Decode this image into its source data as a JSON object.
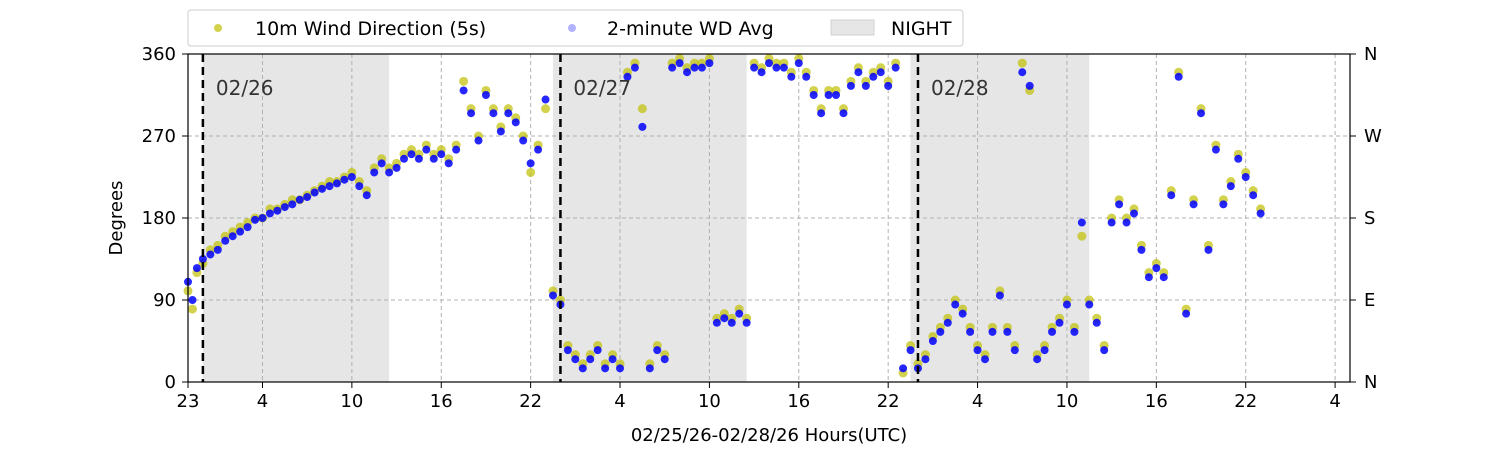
{
  "chart_data": {
    "type": "scatter",
    "xlabel": "02/25/26-02/28/26  Hours(UTC)",
    "ylabel": "Degrees",
    "x_range_hours": [
      23,
      101
    ],
    "ylim": [
      0,
      360
    ],
    "x_ticks": [
      {
        "hour": 23,
        "label": "23"
      },
      {
        "hour": 28,
        "label": "4"
      },
      {
        "hour": 34,
        "label": "10"
      },
      {
        "hour": 40,
        "label": "16"
      },
      {
        "hour": 46,
        "label": "22"
      },
      {
        "hour": 52,
        "label": "4"
      },
      {
        "hour": 58,
        "label": "10"
      },
      {
        "hour": 64,
        "label": "16"
      },
      {
        "hour": 70,
        "label": "22"
      },
      {
        "hour": 76,
        "label": "4"
      },
      {
        "hour": 82,
        "label": "10"
      },
      {
        "hour": 88,
        "label": "16"
      },
      {
        "hour": 94,
        "label": "22"
      },
      {
        "hour": 100,
        "label": "4"
      }
    ],
    "y_ticks": [
      0,
      90,
      180,
      270,
      360
    ],
    "y_right_labels": [
      {
        "value": 0,
        "label": "N"
      },
      {
        "value": 90,
        "label": "E"
      },
      {
        "value": 180,
        "label": "S"
      },
      {
        "value": 270,
        "label": "W"
      },
      {
        "value": 360,
        "label": "N"
      }
    ],
    "grid": true,
    "legend_position": "top, above plot",
    "legend": [
      {
        "label": "10m Wind Direction (5s)",
        "color": "#bfbf00",
        "marker": "circle"
      },
      {
        "label": "2-minute WD Avg",
        "color": "#0000ff",
        "marker": "circle"
      },
      {
        "label": "NIGHT",
        "color": "#e6e6e6",
        "marker": "rect"
      }
    ],
    "night_periods": [
      [
        24,
        36.5
      ],
      [
        47.5,
        60.5
      ],
      [
        71.5,
        83.5
      ]
    ],
    "day_markers": [
      {
        "hour": 24,
        "label": "02/26"
      },
      {
        "hour": 48,
        "label": "02/27"
      },
      {
        "hour": 72,
        "label": "02/28"
      }
    ],
    "series": [
      {
        "name": "10m Wind Direction (5s)",
        "color": "#bfbf00",
        "points": [
          [
            23.0,
            100
          ],
          [
            23.3,
            80
          ],
          [
            23.6,
            120
          ],
          [
            24.0,
            130
          ],
          [
            24.5,
            145
          ],
          [
            25.0,
            150
          ],
          [
            25.5,
            160
          ],
          [
            26.0,
            165
          ],
          [
            26.5,
            170
          ],
          [
            27.0,
            175
          ],
          [
            27.5,
            180
          ],
          [
            28.0,
            180
          ],
          [
            28.5,
            190
          ],
          [
            29.0,
            190
          ],
          [
            29.5,
            195
          ],
          [
            30.0,
            200
          ],
          [
            30.5,
            200
          ],
          [
            31.0,
            205
          ],
          [
            31.5,
            210
          ],
          [
            32.0,
            215
          ],
          [
            32.5,
            220
          ],
          [
            33.0,
            220
          ],
          [
            33.5,
            225
          ],
          [
            34.0,
            230
          ],
          [
            34.5,
            220
          ],
          [
            35.0,
            210
          ],
          [
            35.5,
            235
          ],
          [
            36.0,
            245
          ],
          [
            36.5,
            235
          ],
          [
            37.0,
            240
          ],
          [
            37.5,
            250
          ],
          [
            38.0,
            255
          ],
          [
            38.5,
            250
          ],
          [
            39.0,
            260
          ],
          [
            39.5,
            250
          ],
          [
            40.0,
            255
          ],
          [
            40.5,
            245
          ],
          [
            41.0,
            260
          ],
          [
            41.5,
            330
          ],
          [
            42.0,
            300
          ],
          [
            42.5,
            270
          ],
          [
            43.0,
            320
          ],
          [
            43.5,
            300
          ],
          [
            44.0,
            280
          ],
          [
            44.5,
            300
          ],
          [
            45.0,
            290
          ],
          [
            45.5,
            270
          ],
          [
            46.0,
            230
          ],
          [
            46.5,
            260
          ],
          [
            47.0,
            300
          ],
          [
            47.5,
            100
          ],
          [
            48.0,
            90
          ],
          [
            48.5,
            40
          ],
          [
            49.0,
            30
          ],
          [
            49.5,
            20
          ],
          [
            50.0,
            30
          ],
          [
            50.5,
            40
          ],
          [
            51.0,
            20
          ],
          [
            51.5,
            30
          ],
          [
            52.0,
            20
          ],
          [
            52.5,
            340
          ],
          [
            53.0,
            350
          ],
          [
            53.5,
            300
          ],
          [
            54.0,
            20
          ],
          [
            54.5,
            40
          ],
          [
            55.0,
            30
          ],
          [
            55.5,
            350
          ],
          [
            56.0,
            355
          ],
          [
            56.5,
            345
          ],
          [
            57.0,
            350
          ],
          [
            57.5,
            350
          ],
          [
            58.0,
            355
          ],
          [
            58.5,
            70
          ],
          [
            59.0,
            75
          ],
          [
            59.5,
            70
          ],
          [
            60.0,
            80
          ],
          [
            60.5,
            70
          ],
          [
            61.0,
            350
          ],
          [
            61.5,
            345
          ],
          [
            62.0,
            355
          ],
          [
            62.5,
            350
          ],
          [
            63.0,
            350
          ],
          [
            63.5,
            340
          ],
          [
            64.0,
            355
          ],
          [
            64.5,
            340
          ],
          [
            65.0,
            320
          ],
          [
            65.5,
            300
          ],
          [
            66.0,
            320
          ],
          [
            66.5,
            320
          ],
          [
            67.0,
            300
          ],
          [
            67.5,
            330
          ],
          [
            68.0,
            345
          ],
          [
            68.5,
            330
          ],
          [
            69.0,
            340
          ],
          [
            69.5,
            345
          ],
          [
            70.0,
            330
          ],
          [
            70.5,
            350
          ],
          [
            71.0,
            10
          ],
          [
            71.5,
            40
          ],
          [
            72.0,
            20
          ],
          [
            72.5,
            30
          ],
          [
            73.0,
            50
          ],
          [
            73.5,
            60
          ],
          [
            74.0,
            70
          ],
          [
            74.5,
            90
          ],
          [
            75.0,
            80
          ],
          [
            75.5,
            60
          ],
          [
            76.0,
            40
          ],
          [
            76.5,
            30
          ],
          [
            77.0,
            60
          ],
          [
            77.5,
            100
          ],
          [
            78.0,
            60
          ],
          [
            78.5,
            40
          ],
          [
            79.0,
            350
          ],
          [
            79.5,
            320
          ],
          [
            80.0,
            30
          ],
          [
            80.5,
            40
          ],
          [
            81.0,
            60
          ],
          [
            81.5,
            70
          ],
          [
            82.0,
            90
          ],
          [
            82.5,
            60
          ],
          [
            83.0,
            160
          ],
          [
            83.5,
            90
          ],
          [
            84.0,
            70
          ],
          [
            84.5,
            40
          ],
          [
            85.0,
            180
          ],
          [
            85.5,
            200
          ],
          [
            86.0,
            180
          ],
          [
            86.5,
            190
          ],
          [
            87.0,
            150
          ],
          [
            87.5,
            120
          ],
          [
            88.0,
            130
          ],
          [
            88.5,
            120
          ],
          [
            89.0,
            210
          ],
          [
            89.5,
            340
          ],
          [
            90.0,
            80
          ],
          [
            90.5,
            200
          ],
          [
            91.0,
            300
          ],
          [
            91.5,
            150
          ],
          [
            92.0,
            260
          ],
          [
            92.5,
            200
          ],
          [
            93.0,
            220
          ],
          [
            93.5,
            250
          ],
          [
            94.0,
            230
          ],
          [
            94.5,
            210
          ],
          [
            95.0,
            190
          ]
        ]
      },
      {
        "name": "2-minute WD Avg",
        "color": "#0000ff",
        "points": [
          [
            23.0,
            110
          ],
          [
            23.3,
            90
          ],
          [
            23.6,
            125
          ],
          [
            24.0,
            135
          ],
          [
            24.5,
            140
          ],
          [
            25.0,
            145
          ],
          [
            25.5,
            155
          ],
          [
            26.0,
            160
          ],
          [
            26.5,
            165
          ],
          [
            27.0,
            170
          ],
          [
            27.5,
            178
          ],
          [
            28.0,
            180
          ],
          [
            28.5,
            185
          ],
          [
            29.0,
            188
          ],
          [
            29.5,
            192
          ],
          [
            30.0,
            195
          ],
          [
            30.5,
            200
          ],
          [
            31.0,
            203
          ],
          [
            31.5,
            208
          ],
          [
            32.0,
            212
          ],
          [
            32.5,
            215
          ],
          [
            33.0,
            218
          ],
          [
            33.5,
            222
          ],
          [
            34.0,
            225
          ],
          [
            34.5,
            215
          ],
          [
            35.0,
            205
          ],
          [
            35.5,
            230
          ],
          [
            36.0,
            240
          ],
          [
            36.5,
            230
          ],
          [
            37.0,
            235
          ],
          [
            37.5,
            245
          ],
          [
            38.0,
            250
          ],
          [
            38.5,
            245
          ],
          [
            39.0,
            255
          ],
          [
            39.5,
            245
          ],
          [
            40.0,
            250
          ],
          [
            40.5,
            240
          ],
          [
            41.0,
            255
          ],
          [
            41.5,
            320
          ],
          [
            42.0,
            295
          ],
          [
            42.5,
            265
          ],
          [
            43.0,
            315
          ],
          [
            43.5,
            295
          ],
          [
            44.0,
            275
          ],
          [
            44.5,
            295
          ],
          [
            45.0,
            285
          ],
          [
            45.5,
            265
          ],
          [
            46.0,
            240
          ],
          [
            46.5,
            255
          ],
          [
            47.0,
            310
          ],
          [
            47.5,
            95
          ],
          [
            48.0,
            85
          ],
          [
            48.5,
            35
          ],
          [
            49.0,
            25
          ],
          [
            49.5,
            15
          ],
          [
            50.0,
            25
          ],
          [
            50.5,
            35
          ],
          [
            51.0,
            15
          ],
          [
            51.5,
            25
          ],
          [
            52.0,
            15
          ],
          [
            52.5,
            335
          ],
          [
            53.0,
            345
          ],
          [
            53.5,
            280
          ],
          [
            54.0,
            15
          ],
          [
            54.5,
            35
          ],
          [
            55.0,
            25
          ],
          [
            55.5,
            345
          ],
          [
            56.0,
            350
          ],
          [
            56.5,
            340
          ],
          [
            57.0,
            345
          ],
          [
            57.5,
            345
          ],
          [
            58.0,
            350
          ],
          [
            58.5,
            65
          ],
          [
            59.0,
            70
          ],
          [
            59.5,
            65
          ],
          [
            60.0,
            75
          ],
          [
            60.5,
            65
          ],
          [
            61.0,
            345
          ],
          [
            61.5,
            340
          ],
          [
            62.0,
            350
          ],
          [
            62.5,
            345
          ],
          [
            63.0,
            345
          ],
          [
            63.5,
            335
          ],
          [
            64.0,
            350
          ],
          [
            64.5,
            335
          ],
          [
            65.0,
            315
          ],
          [
            65.5,
            295
          ],
          [
            66.0,
            315
          ],
          [
            66.5,
            315
          ],
          [
            67.0,
            295
          ],
          [
            67.5,
            325
          ],
          [
            68.0,
            340
          ],
          [
            68.5,
            325
          ],
          [
            69.0,
            335
          ],
          [
            69.5,
            340
          ],
          [
            70.0,
            325
          ],
          [
            70.5,
            345
          ],
          [
            71.0,
            15
          ],
          [
            71.5,
            35
          ],
          [
            72.0,
            15
          ],
          [
            72.5,
            25
          ],
          [
            73.0,
            45
          ],
          [
            73.5,
            55
          ],
          [
            74.0,
            65
          ],
          [
            74.5,
            85
          ],
          [
            75.0,
            75
          ],
          [
            75.5,
            55
          ],
          [
            76.0,
            35
          ],
          [
            76.5,
            25
          ],
          [
            77.0,
            55
          ],
          [
            77.5,
            95
          ],
          [
            78.0,
            55
          ],
          [
            78.5,
            35
          ],
          [
            79.0,
            340
          ],
          [
            79.5,
            325
          ],
          [
            80.0,
            25
          ],
          [
            80.5,
            35
          ],
          [
            81.0,
            55
          ],
          [
            81.5,
            65
          ],
          [
            82.0,
            85
          ],
          [
            82.5,
            55
          ],
          [
            83.0,
            175
          ],
          [
            83.5,
            85
          ],
          [
            84.0,
            65
          ],
          [
            84.5,
            35
          ],
          [
            85.0,
            175
          ],
          [
            85.5,
            195
          ],
          [
            86.0,
            175
          ],
          [
            86.5,
            185
          ],
          [
            87.0,
            145
          ],
          [
            87.5,
            115
          ],
          [
            88.0,
            125
          ],
          [
            88.5,
            115
          ],
          [
            89.0,
            205
          ],
          [
            89.5,
            335
          ],
          [
            90.0,
            75
          ],
          [
            90.5,
            195
          ],
          [
            91.0,
            295
          ],
          [
            91.5,
            145
          ],
          [
            92.0,
            255
          ],
          [
            92.5,
            195
          ],
          [
            93.0,
            215
          ],
          [
            93.5,
            245
          ],
          [
            94.0,
            225
          ],
          [
            94.5,
            205
          ],
          [
            95.0,
            185
          ]
        ]
      }
    ]
  }
}
